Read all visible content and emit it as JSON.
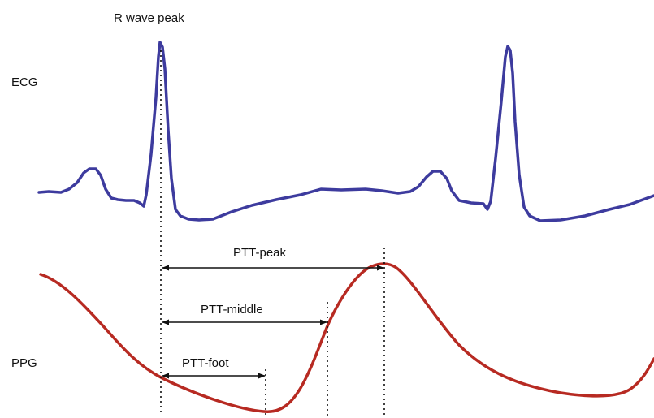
{
  "labels": {
    "r_wave_peak": "R wave peak",
    "ecg": "ECG",
    "ppg": "PPG",
    "ptt_peak": "PTT-peak",
    "ptt_middle": "PTT-middle",
    "ptt_foot": "PTT-foot"
  },
  "colors": {
    "ecg": "#3d3b9e",
    "ppg": "#b72a22",
    "annotation": "#111111"
  }
}
